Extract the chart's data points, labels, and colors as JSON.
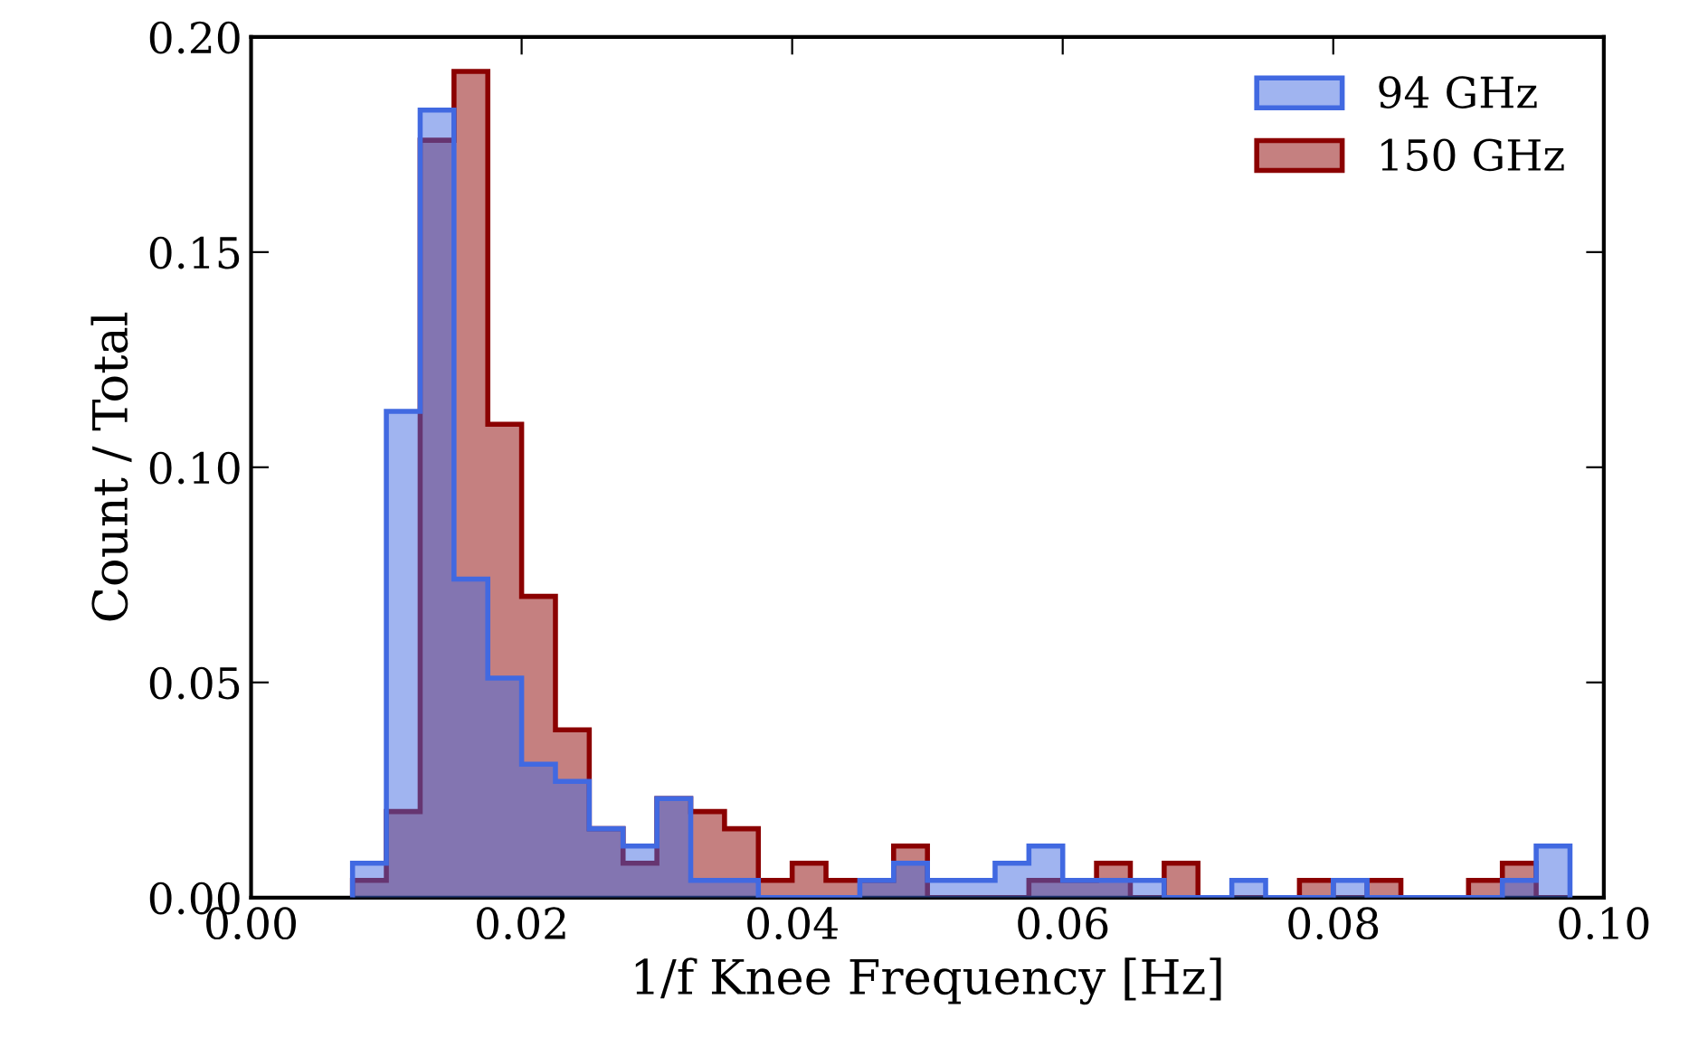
{
  "chart_data": {
    "type": "histogram",
    "xlabel": "1/f Knee Frequency [Hz]",
    "ylabel": "Count / Total",
    "bins": [
      0.0075,
      0.01,
      0.0125,
      0.015,
      0.0175,
      0.02,
      0.0225,
      0.025,
      0.0275,
      0.03,
      0.0325,
      0.035,
      0.0375,
      0.04,
      0.0425,
      0.045,
      0.0475,
      0.05,
      0.0525,
      0.055,
      0.0575,
      0.06,
      0.0625,
      0.065,
      0.0675,
      0.07,
      0.0725,
      0.075,
      0.0775,
      0.08,
      0.0825,
      0.085,
      0.0875,
      0.09,
      0.0925,
      0.095,
      0.0975
    ],
    "series": [
      {
        "name": "94 GHz",
        "color": "#a0b4f0",
        "values": [
          0.008,
          0.113,
          0.183,
          0.074,
          0.051,
          0.031,
          0.027,
          0.016,
          0.012,
          0.023,
          0.004,
          0.004,
          0,
          0,
          0,
          0.004,
          0.008,
          0.004,
          0.004,
          0.008,
          0.012,
          0.004,
          0.004,
          0.004,
          0,
          0,
          0.004,
          0,
          0,
          0.004,
          0,
          0,
          0,
          0,
          0.004,
          0.012
        ]
      },
      {
        "name": "150 GHz",
        "color": "#c58080",
        "values": [
          0.004,
          0.02,
          0.176,
          0.192,
          0.11,
          0.07,
          0.039,
          0.016,
          0.008,
          0.023,
          0.02,
          0.016,
          0.004,
          0.008,
          0.004,
          0.004,
          0.012,
          0,
          0,
          0,
          0.004,
          0.004,
          0.008,
          0,
          0.008,
          0,
          0,
          0,
          0.004,
          0,
          0.004,
          0,
          0,
          0.004,
          0.008,
          0
        ]
      }
    ],
    "xlim": [
      0,
      0.1
    ],
    "ylim": [
      0,
      0.2
    ],
    "xticks": [
      {
        "value": 0,
        "label": "0.00"
      },
      {
        "value": 0.02,
        "label": "0.02"
      },
      {
        "value": 0.04,
        "label": "0.04"
      },
      {
        "value": 0.06,
        "label": "0.06"
      },
      {
        "value": 0.08,
        "label": "0.08"
      },
      {
        "value": 0.1,
        "label": "0.10"
      }
    ],
    "yticks": [
      {
        "value": 0,
        "label": "0.00"
      },
      {
        "value": 0.05,
        "label": "0.05"
      },
      {
        "value": 0.1,
        "label": "0.10"
      },
      {
        "value": 0.15,
        "label": "0.15"
      },
      {
        "value": 0.2,
        "label": "0.20"
      }
    ],
    "legend": "top right",
    "grid": false
  }
}
